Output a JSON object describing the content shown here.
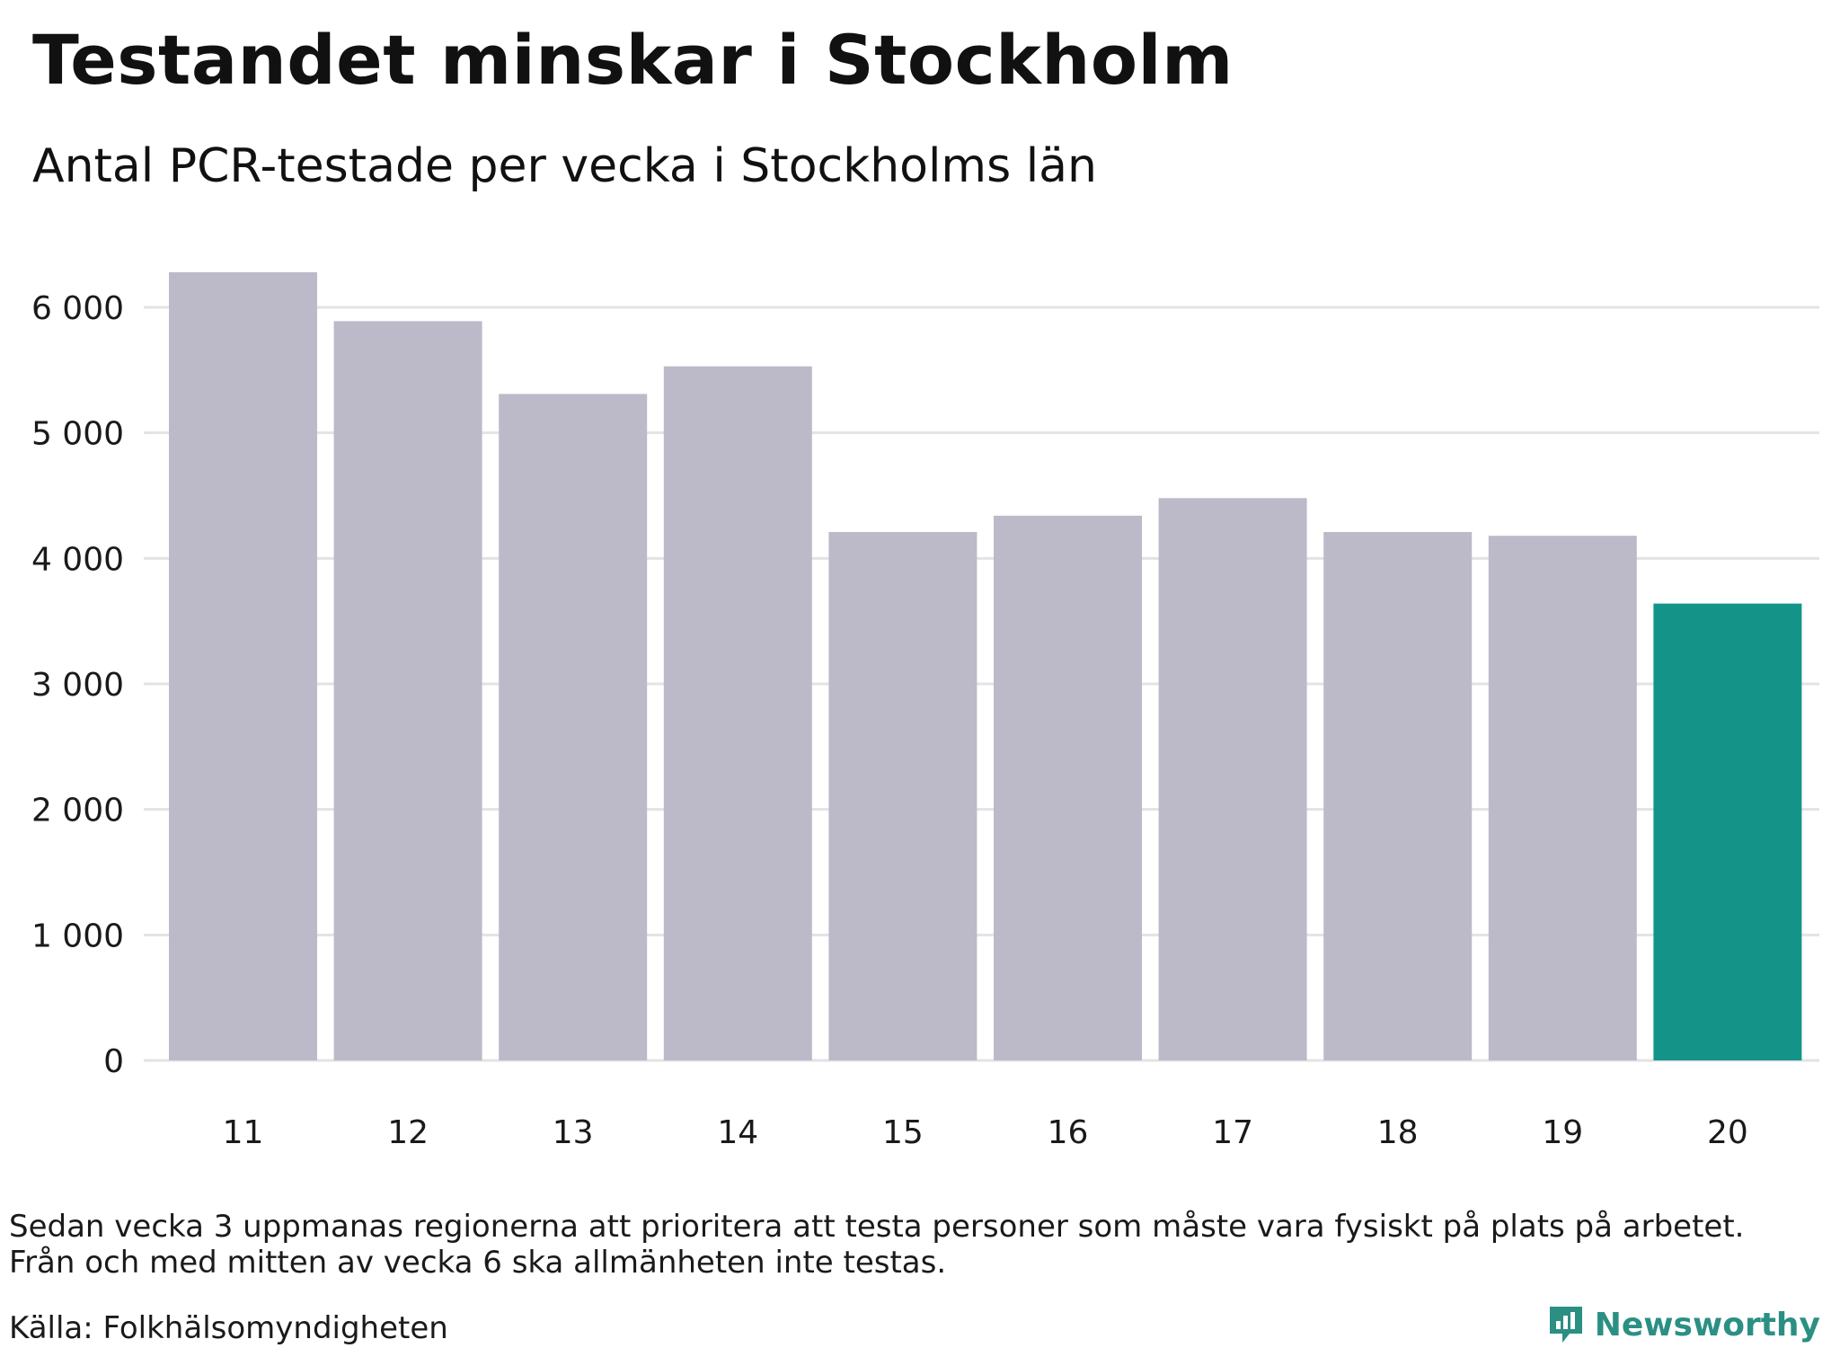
{
  "header": {
    "title": "Testandet minskar i Stockholm",
    "subtitle": "Antal PCR-testade per vecka i Stockholms län"
  },
  "footer": {
    "note_line1": "Sedan vecka 3 uppmanas regionerna att prioritera att testa personer som måste vara fysiskt på plats på arbetet.",
    "note_line2": "Från och med mitten av vecka 6 ska allmänheten inte testas.",
    "source": "Källa: Folkhälsomyndigheten",
    "logo_text": "Newsworthy",
    "logo_icon": "newsworthy-logo-icon"
  },
  "colors": {
    "bar_default": "#bcbac8",
    "bar_highlight": "#149488",
    "gridline": "#e3e3e6",
    "logo": "#2b8f84"
  },
  "chart_data": {
    "type": "bar",
    "title": "Testandet minskar i Stockholm",
    "subtitle": "Antal PCR-testade per vecka i Stockholms län",
    "xlabel": "",
    "ylabel": "",
    "categories": [
      "11",
      "12",
      "13",
      "14",
      "15",
      "16",
      "17",
      "18",
      "19",
      "20"
    ],
    "values": [
      6280,
      5890,
      5310,
      5530,
      4210,
      4340,
      4480,
      4210,
      4180,
      3640
    ],
    "highlight_index": 9,
    "ylim": [
      0,
      6300
    ],
    "yticks": [
      0,
      1000,
      2000,
      3000,
      4000,
      5000,
      6000
    ],
    "ytick_labels": [
      "0",
      "1 000",
      "2 000",
      "3 000",
      "4 000",
      "5 000",
      "6 000"
    ],
    "grid": true,
    "legend": "none"
  }
}
